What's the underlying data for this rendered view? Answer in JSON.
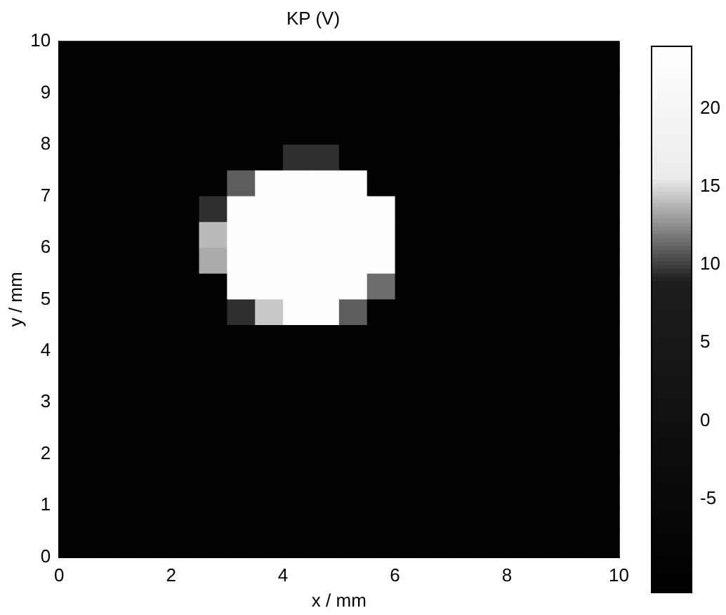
{
  "chart_data": {
    "type": "heatmap",
    "title": "KP (V)",
    "xlabel": "x / mm",
    "ylabel": "y / mm",
    "x": [
      0.25,
      0.75,
      1.25,
      1.75,
      2.25,
      2.75,
      3.25,
      3.75,
      4.25,
      4.75,
      5.25,
      5.75,
      6.25,
      6.75,
      7.25,
      7.75,
      8.25,
      8.75,
      9.25,
      9.75
    ],
    "y": [
      9.75,
      9.25,
      8.75,
      8.25,
      7.75,
      7.25,
      6.75,
      6.25,
      5.75,
      5.25,
      4.75,
      4.25,
      3.75,
      3.25,
      2.75,
      2.25,
      1.75,
      1.25,
      0.75,
      0.25
    ],
    "xlim": [
      0,
      10
    ],
    "xticks": [
      0,
      2,
      4,
      6,
      8,
      10
    ],
    "ylim": [
      0,
      10
    ],
    "yticks": [
      0,
      1,
      2,
      3,
      4,
      5,
      6,
      7,
      8,
      9,
      10
    ],
    "clim": [
      -11,
      24
    ],
    "cticks": [
      -5,
      0,
      5,
      10,
      15,
      20
    ],
    "cells": [
      [
        -9.5,
        -9.5,
        -9.5,
        -9.5,
        -9.5,
        -9.5,
        -9.5,
        -9.5,
        -9.5,
        -9.5,
        -9.5,
        -9.5,
        -9.5,
        -9.5,
        -9.5,
        -9.5,
        -9.5,
        -9.5,
        -9.5,
        -9.5
      ],
      [
        -9.5,
        -9.5,
        -9.5,
        -9.5,
        -9.5,
        -9.5,
        -9.5,
        -9.5,
        -9.5,
        -9.5,
        -9.5,
        -9.5,
        -9.5,
        -9.5,
        -9.5,
        -9.5,
        -9.5,
        -9.5,
        -9.5,
        -9.5
      ],
      [
        -9.5,
        -9.5,
        -9.5,
        -9.5,
        -9.5,
        -9.5,
        -9.5,
        -9.5,
        -9.5,
        -9.5,
        -9.5,
        -9.5,
        -9.5,
        -9.5,
        -9.5,
        -9.5,
        -9.5,
        -9.5,
        -9.5,
        -9.5
      ],
      [
        -9.5,
        -9.5,
        -9.5,
        -9.5,
        -9.5,
        -9.5,
        -9.5,
        -9.5,
        -9.5,
        -9.5,
        -9.5,
        -9.5,
        -9.5,
        -9.5,
        -9.5,
        -9.5,
        -9.5,
        -9.5,
        -9.5,
        -9.5
      ],
      [
        -9.5,
        -9.5,
        -9.5,
        -9.5,
        -9.5,
        -9.5,
        -9.5,
        -9.5,
        9.5,
        9.5,
        -9.5,
        -9.5,
        -9.5,
        -9.5,
        -9.5,
        -9.5,
        -9.5,
        -9.5,
        -9.5,
        -9.5
      ],
      [
        -9.5,
        -9.5,
        -9.5,
        -9.5,
        -9.5,
        -9.5,
        11,
        23,
        23,
        23,
        23,
        -9.5,
        -9.5,
        -9.5,
        -9.5,
        -9.5,
        -9.5,
        -9.5,
        -9.5,
        -9.5
      ],
      [
        -9.5,
        -9.5,
        -9.5,
        -9.5,
        -9.5,
        9.5,
        23,
        23,
        23,
        23,
        23,
        23,
        -9.5,
        -9.5,
        -9.5,
        -9.5,
        -9.5,
        -9.5,
        -9.5,
        -9.5
      ],
      [
        -9.5,
        -9.5,
        -9.5,
        -9.5,
        -9.5,
        14,
        23,
        23,
        23,
        23,
        23,
        23,
        -9.5,
        -9.5,
        -9.5,
        -9.5,
        -9.5,
        -9.5,
        -9.5,
        -9.5
      ],
      [
        -9.5,
        -9.5,
        -9.5,
        -9.5,
        -9.5,
        13.5,
        23,
        23,
        23,
        23,
        23,
        23,
        -9.5,
        -9.5,
        -9.5,
        -9.5,
        -9.5,
        -9.5,
        -9.5,
        -9.5
      ],
      [
        -9.5,
        -9.5,
        -9.5,
        -9.5,
        -9.5,
        -9.5,
        23,
        23,
        23,
        23,
        23,
        11.5,
        -9.5,
        -9.5,
        -9.5,
        -9.5,
        -9.5,
        -9.5,
        -9.5,
        -9.5
      ],
      [
        -9.5,
        -9.5,
        -9.5,
        -9.5,
        -9.5,
        -9.5,
        9.5,
        14.5,
        23,
        23,
        11,
        -9.5,
        -9.5,
        -9.5,
        -9.5,
        -9.5,
        -9.5,
        -9.5,
        -9.5,
        -9.5
      ],
      [
        -9.5,
        -9.5,
        -9.5,
        -9.5,
        -9.5,
        -9.5,
        -9.5,
        -9.5,
        -9.5,
        -9.5,
        -9.5,
        -9.5,
        -9.5,
        -9.5,
        -9.5,
        -9.5,
        -9.5,
        -9.5,
        -9.5,
        -9.5
      ],
      [
        -9.5,
        -9.5,
        -9.5,
        -9.5,
        -9.5,
        -9.5,
        -9.5,
        -9.5,
        -9.5,
        -9.5,
        -9.5,
        -9.5,
        -9.5,
        -9.5,
        -9.5,
        -9.5,
        -9.5,
        -9.5,
        -9.5,
        -9.5
      ],
      [
        -9.5,
        -9.5,
        -9.5,
        -9.5,
        -9.5,
        -9.5,
        -9.5,
        -9.5,
        -9.5,
        -9.5,
        -9.5,
        -9.5,
        -9.5,
        -9.5,
        -9.5,
        -9.5,
        -9.5,
        -9.5,
        -9.5,
        -9.5
      ],
      [
        -9.5,
        -9.5,
        -9.5,
        -9.5,
        -9.5,
        -9.5,
        -9.5,
        -9.5,
        -9.5,
        -9.5,
        -9.5,
        -9.5,
        -9.5,
        -9.5,
        -9.5,
        -9.5,
        -9.5,
        -9.5,
        -9.5,
        -9.5
      ],
      [
        -9.5,
        -9.5,
        -9.5,
        -9.5,
        -9.5,
        -9.5,
        -9.5,
        -9.5,
        -9.5,
        -9.5,
        -9.5,
        -9.5,
        -9.5,
        -9.5,
        -9.5,
        -9.5,
        -9.5,
        -9.5,
        -9.5,
        -9.5
      ],
      [
        -9.5,
        -9.5,
        -9.5,
        -9.5,
        -9.5,
        -9.5,
        -9.5,
        -9.5,
        -9.5,
        -9.5,
        -9.5,
        -9.5,
        -9.5,
        -9.5,
        -9.5,
        -9.5,
        -9.5,
        -9.5,
        -9.5,
        -9.5
      ],
      [
        -9.5,
        -9.5,
        -9.5,
        -9.5,
        -9.5,
        -9.5,
        -9.5,
        -9.5,
        -9.5,
        -9.5,
        -9.5,
        -9.5,
        -9.5,
        -9.5,
        -9.5,
        -9.5,
        -9.5,
        -9.5,
        -9.5,
        -9.5
      ],
      [
        -9.5,
        -9.5,
        -9.5,
        -9.5,
        -9.5,
        -9.5,
        -9.5,
        -9.5,
        -9.5,
        -9.5,
        -9.5,
        -9.5,
        -9.5,
        -9.5,
        -9.5,
        -9.5,
        -9.5,
        -9.5,
        -9.5,
        -9.5
      ],
      [
        -9.5,
        -9.5,
        -9.5,
        -9.5,
        -9.5,
        -9.5,
        -9.5,
        -9.5,
        -9.5,
        -9.5,
        -9.5,
        -9.5,
        -9.5,
        -9.5,
        -9.5,
        -9.5,
        -9.5,
        -9.5,
        -9.5,
        -9.5
      ]
    ]
  }
}
